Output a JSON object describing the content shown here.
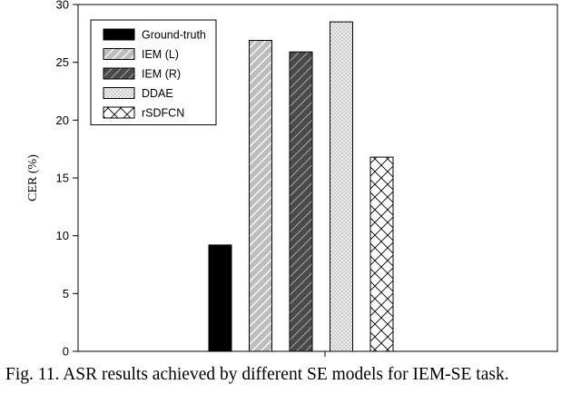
{
  "chart_data": {
    "type": "bar",
    "title": "",
    "xlabel": "",
    "ylabel": "CER (%)",
    "ylim": [
      0,
      30
    ],
    "yticks": [
      "0",
      "5",
      "10",
      "15",
      "20",
      "25",
      "30"
    ],
    "grid": false,
    "legend_position": "top-left",
    "categories": [
      "Ground-truth",
      "IEM (L)",
      "IEM (R)",
      "DDAE",
      "rSDFCN"
    ],
    "values": [
      9.2,
      26.9,
      25.9,
      28.5,
      16.8
    ],
    "series_styles": [
      {
        "fill": "solid-black"
      },
      {
        "fill": "light-diagonal-hatch"
      },
      {
        "fill": "dark-diagonal-hatch"
      },
      {
        "fill": "dotted"
      },
      {
        "fill": "cross-hatch"
      }
    ]
  },
  "caption": "Fig. 11. ASR results achieved by different SE models for IEM-SE task."
}
